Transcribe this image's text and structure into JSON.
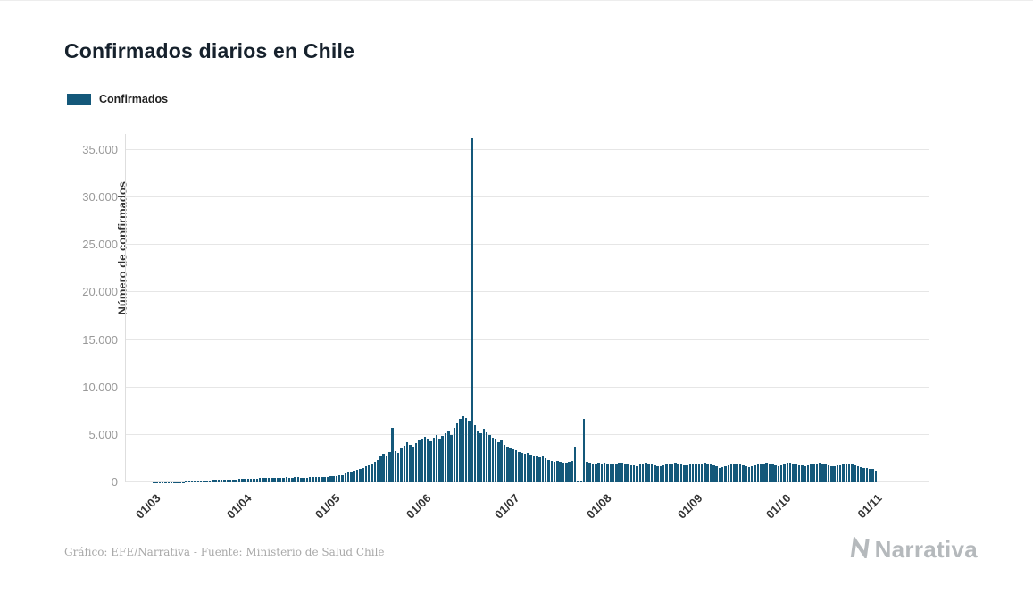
{
  "header": {
    "title": "Confirmados diarios en Chile"
  },
  "legend": {
    "items": [
      {
        "label": "Confirmados",
        "color": "#14587a"
      }
    ]
  },
  "chart_data": {
    "type": "bar",
    "title": "Confirmados diarios en Chile",
    "xlabel": "",
    "ylabel": "Número de confirmados",
    "series_name": "Confirmados",
    "bar_color": "#14587a",
    "grid": "horizontal",
    "legend_position": "top-left",
    "ylim": [
      0,
      37500
    ],
    "y_ticks": [
      {
        "value": 0,
        "label": "0"
      },
      {
        "value": 5000,
        "label": "5.000"
      },
      {
        "value": 10000,
        "label": "10.000"
      },
      {
        "value": 15000,
        "label": "15.000"
      },
      {
        "value": 20000,
        "label": "20.000"
      },
      {
        "value": 25000,
        "label": "25.000"
      },
      {
        "value": 30000,
        "label": "30.000"
      },
      {
        "value": 35000,
        "label": "35.000"
      }
    ],
    "x_ticks": [
      {
        "label": "01/03",
        "day": 0
      },
      {
        "label": "01/04",
        "day": 31
      },
      {
        "label": "01/05",
        "day": 61
      },
      {
        "label": "01/06",
        "day": 92
      },
      {
        "label": "01/07",
        "day": 122
      },
      {
        "label": "01/08",
        "day": 153
      },
      {
        "label": "01/09",
        "day": 184
      },
      {
        "label": "01/10",
        "day": 214
      },
      {
        "label": "01/11",
        "day": 245
      }
    ],
    "values": [
      2,
      3,
      4,
      5,
      6,
      8,
      10,
      15,
      20,
      30,
      40,
      55,
      75,
      95,
      120,
      140,
      160,
      180,
      200,
      220,
      240,
      260,
      280,
      300,
      310,
      290,
      320,
      330,
      310,
      340,
      350,
      360,
      380,
      400,
      420,
      410,
      430,
      450,
      440,
      460,
      480,
      470,
      500,
      490,
      510,
      520,
      450,
      480,
      520,
      550,
      500,
      460,
      480,
      520,
      560,
      580,
      600,
      550,
      520,
      570,
      620,
      650,
      700,
      750,
      800,
      900,
      1000,
      1100,
      1200,
      1300,
      1400,
      1500,
      1650,
      1800,
      2000,
      2200,
      2400,
      2700,
      3000,
      2800,
      3200,
      5700,
      3300,
      3100,
      3600,
      3900,
      4200,
      4000,
      3800,
      4100,
      4400,
      4600,
      4800,
      4500,
      4300,
      4700,
      5000,
      4600,
      4900,
      5200,
      5400,
      5000,
      5700,
      6200,
      6700,
      7000,
      6800,
      6500,
      36179,
      6000,
      5500,
      5200,
      5600,
      5300,
      5000,
      4700,
      4500,
      4200,
      4400,
      4000,
      3800,
      3600,
      3500,
      3400,
      3200,
      3100,
      3000,
      3100,
      2900,
      2800,
      2700,
      2600,
      2700,
      2500,
      2400,
      2300,
      2200,
      2250,
      2150,
      2100,
      2050,
      2200,
      2300,
      3750,
      150,
      120,
      6700,
      2150,
      2050,
      2000,
      1950,
      2050,
      2000,
      2050,
      1950,
      1900,
      1850,
      2000,
      2100,
      2050,
      1950,
      1850,
      1800,
      1750,
      1700,
      1850,
      1950,
      2050,
      2000,
      1900,
      1750,
      1650,
      1700,
      1800,
      1900,
      1950,
      2000,
      2050,
      1950,
      1850,
      1750,
      1800,
      1900,
      1950,
      1850,
      1950,
      2000,
      2050,
      1950,
      1900,
      1800,
      1650,
      1550,
      1600,
      1700,
      1800,
      1900,
      1950,
      2000,
      1900,
      1750,
      1650,
      1600,
      1650,
      1750,
      1850,
      1950,
      2000,
      2050,
      1950,
      1850,
      1750,
      1700,
      1750,
      1950,
      2050,
      2100,
      2000,
      1900,
      1800,
      1750,
      1700,
      1750,
      1850,
      1950,
      2000,
      2050,
      1950,
      1850,
      1750,
      1700,
      1650,
      1750,
      1800,
      1900,
      1950,
      2000,
      1900,
      1800,
      1700,
      1600,
      1550,
      1500,
      1450,
      1400,
      1250
    ]
  },
  "footer": {
    "credit": "Gráfico: EFE/Narrativa - Fuente: Ministerio de Salud Chile",
    "brand": "Narrativa"
  }
}
